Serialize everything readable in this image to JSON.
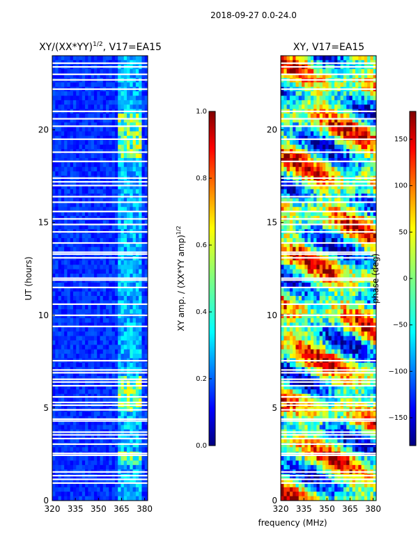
{
  "figure_title": "2018-09-27 0.0-24.0",
  "colors": {
    "jet": [
      "#00007f",
      "#0000ff",
      "#007fff",
      "#00ffff",
      "#7fff7f",
      "#ffff00",
      "#ff7f00",
      "#ff0000",
      "#7f0000"
    ],
    "gap": "#ffffff",
    "axis": "#000000"
  },
  "chart_data": [
    {
      "type": "heatmap",
      "title": "XY/(XX*YY)",
      "title_sup": "1/2",
      "title_suffix": ", V17=EA15",
      "xlabel": "",
      "ylabel": "UT (hours)",
      "xlim": [
        320,
        382
      ],
      "ylim": [
        0,
        24
      ],
      "xticks": [
        320,
        335,
        350,
        365,
        380
      ],
      "xtick_labels": [
        "320",
        "335",
        "350",
        "365",
        "380"
      ],
      "yticks": [
        0,
        5,
        10,
        15,
        20
      ],
      "ytick_labels": [
        "0",
        "5",
        "10",
        "15",
        "20"
      ],
      "bright_band_mhz": [
        362,
        378
      ],
      "colorbar": {
        "label": "XY amp. / (XX*YY amp)",
        "label_sup": "1/2",
        "range": [
          0.0,
          1.0
        ],
        "ticks": [
          0.0,
          0.2,
          0.4,
          0.6,
          0.8,
          1.0
        ],
        "tick_labels": [
          "0.0",
          "0.2",
          "0.4",
          "0.6",
          "0.8",
          "1.0"
        ]
      }
    },
    {
      "type": "heatmap",
      "title": "XY, V17=EA15",
      "xlabel": "frequency (MHz)",
      "ylabel": "",
      "xlim": [
        320,
        382
      ],
      "ylim": [
        0,
        24
      ],
      "xticks": [
        320,
        335,
        350,
        365,
        380
      ],
      "xtick_labels": [
        "320",
        "335",
        "350",
        "365",
        "380"
      ],
      "yticks": [
        0,
        5,
        10,
        15,
        20
      ],
      "ytick_labels": [
        "0",
        "5",
        "10",
        "15",
        "20"
      ],
      "colorbar": {
        "label": "phase (deg)",
        "range": [
          -180,
          180
        ],
        "ticks": [
          -150,
          -100,
          -50,
          0,
          50,
          100,
          150
        ],
        "tick_labels": [
          "−150",
          "−100",
          "−50",
          "0",
          "50",
          "100",
          "150"
        ]
      }
    }
  ],
  "flagged_gaps_ut": [
    0.95,
    1.15,
    1.35,
    1.55,
    2.45,
    2.55,
    3.05,
    3.35,
    3.55,
    3.7,
    4.3,
    4.4,
    4.9,
    5.15,
    5.3,
    5.6,
    6.2,
    6.4,
    6.55,
    6.9,
    7.05,
    7.55,
    9.4,
    10.0,
    10.6,
    11.5,
    11.9,
    12.0,
    13.1,
    13.3,
    13.4,
    13.9,
    14.5,
    14.9,
    15.2,
    15.6,
    16.1,
    16.4,
    17.0,
    17.2,
    17.4,
    18.3,
    18.8,
    19.5,
    20.2,
    20.6,
    21.0,
    22.2,
    22.7,
    23.0,
    23.4,
    23.6
  ]
}
